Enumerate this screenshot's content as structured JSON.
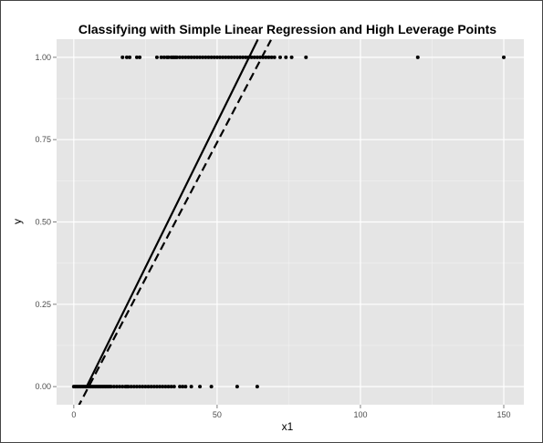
{
  "chart_data": {
    "type": "scatter",
    "title": "Classifying with Simple Linear Regression and High Leverage Points",
    "xlabel": "x1",
    "ylabel": "y",
    "xlim": [
      -6,
      157
    ],
    "ylim": [
      -0.055,
      1.055
    ],
    "x_ticks": [
      0,
      50,
      100,
      150
    ],
    "x_tick_labels": [
      "0",
      "50",
      "100",
      "150"
    ],
    "y_ticks": [
      0,
      0.25,
      0.5,
      0.75,
      1
    ],
    "y_tick_labels": [
      "0.00",
      "0.25",
      "0.50",
      "0.75",
      "1.00"
    ],
    "grid": true,
    "panel_background": "#e5e5e5",
    "grid_color": "#ffffff",
    "point_color": "#000000",
    "series": [
      {
        "points": [
          [
            0,
            0
          ],
          [
            0.5,
            0
          ],
          [
            1,
            0
          ],
          [
            1.5,
            0
          ],
          [
            2,
            0
          ],
          [
            2.5,
            0
          ],
          [
            3,
            0
          ],
          [
            3.5,
            0
          ],
          [
            4,
            0
          ],
          [
            4.5,
            0
          ],
          [
            5,
            0
          ],
          [
            5.5,
            0
          ],
          [
            6,
            0
          ],
          [
            6.5,
            0
          ],
          [
            7,
            0
          ],
          [
            7.5,
            0
          ],
          [
            8,
            0
          ],
          [
            8.5,
            0
          ],
          [
            9,
            0
          ],
          [
            9.5,
            0
          ],
          [
            10,
            0
          ],
          [
            10.5,
            0
          ],
          [
            11,
            0
          ],
          [
            11.5,
            0
          ],
          [
            12,
            0
          ],
          [
            12.5,
            0
          ],
          [
            13,
            0
          ],
          [
            14,
            0
          ],
          [
            15,
            0
          ],
          [
            16,
            0
          ],
          [
            17,
            0
          ],
          [
            18,
            0
          ],
          [
            18.5,
            0
          ],
          [
            19,
            0
          ],
          [
            20,
            0
          ],
          [
            21,
            0
          ],
          [
            22,
            0
          ],
          [
            23,
            0
          ],
          [
            24,
            0
          ],
          [
            25,
            0
          ],
          [
            26,
            0
          ],
          [
            27,
            0
          ],
          [
            28,
            0
          ],
          [
            29,
            0
          ],
          [
            30,
            0
          ],
          [
            31,
            0
          ],
          [
            32,
            0
          ],
          [
            33,
            0
          ],
          [
            34,
            0
          ],
          [
            35,
            0
          ],
          [
            37,
            0
          ],
          [
            38,
            0
          ],
          [
            39,
            0
          ],
          [
            41,
            0
          ],
          [
            44,
            0
          ],
          [
            48,
            0
          ],
          [
            57,
            0
          ],
          [
            64,
            0
          ],
          [
            17,
            1
          ],
          [
            18.5,
            1
          ],
          [
            19.5,
            1
          ],
          [
            22,
            1
          ],
          [
            23,
            1
          ],
          [
            29,
            1
          ],
          [
            30.5,
            1
          ],
          [
            31.5,
            1
          ],
          [
            32.5,
            1
          ],
          [
            33,
            1
          ],
          [
            34,
            1
          ],
          [
            34.5,
            1
          ],
          [
            35,
            1
          ],
          [
            35.5,
            1
          ],
          [
            36,
            1
          ],
          [
            37,
            1
          ],
          [
            38,
            1
          ],
          [
            39,
            1
          ],
          [
            40,
            1
          ],
          [
            41,
            1
          ],
          [
            42,
            1
          ],
          [
            43,
            1
          ],
          [
            44,
            1
          ],
          [
            45,
            1
          ],
          [
            46,
            1
          ],
          [
            47,
            1
          ],
          [
            48,
            1
          ],
          [
            49,
            1
          ],
          [
            50,
            1
          ],
          [
            51,
            1
          ],
          [
            52,
            1
          ],
          [
            53,
            1
          ],
          [
            54,
            1
          ],
          [
            55,
            1
          ],
          [
            56,
            1
          ],
          [
            57,
            1
          ],
          [
            58,
            1
          ],
          [
            59,
            1
          ],
          [
            60,
            1
          ],
          [
            61,
            1
          ],
          [
            62,
            1
          ],
          [
            63,
            1
          ],
          [
            64,
            1
          ],
          [
            65,
            1
          ],
          [
            66,
            1
          ],
          [
            67,
            1
          ],
          [
            68,
            1
          ],
          [
            69,
            1
          ],
          [
            70,
            1
          ],
          [
            72,
            1
          ],
          [
            74,
            1
          ],
          [
            76,
            1
          ],
          [
            81,
            1
          ],
          [
            120,
            1
          ],
          [
            150,
            1
          ]
        ]
      }
    ],
    "lines": [
      {
        "style": "solid",
        "x_from": 4.4,
        "x_to": 64.2,
        "intercept": -0.0792,
        "slope": 0.01765
      },
      {
        "style": "dashed",
        "x_from": 1.3,
        "x_to": 68.8,
        "intercept": -0.0863,
        "slope": 0.01656
      }
    ]
  }
}
